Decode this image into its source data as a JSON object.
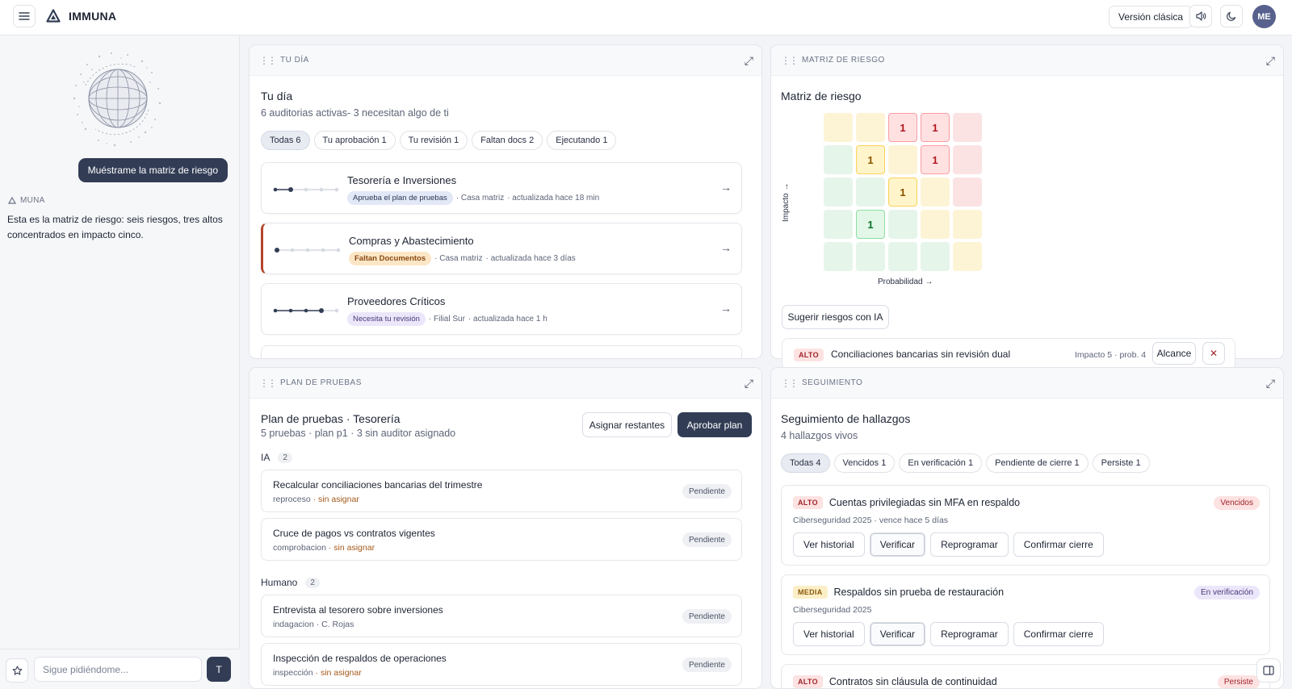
{
  "app": {
    "brand": "IMMUNA",
    "classic_label": "Versión clásica",
    "avatar_initials": "ME"
  },
  "sidebar": {
    "user_message": "Muéstrame la matriz de riesgo",
    "assistant_name": "MUNA",
    "assistant_message": "Esta es la matriz de riesgo: seis riesgos, tres altos concentrados en impacto cinco.",
    "input_placeholder": "Sigue pidiéndome...",
    "send_label": "T"
  },
  "tu_dia": {
    "header": "TU DÍA",
    "title": "Tu día",
    "subtitle": "6 auditorias activas- 3 necesitan algo de ti",
    "filters": [
      "Todas 6",
      "Tu aprobación 1",
      "Tu revisión 1",
      "Faltan docs 2",
      "Ejecutando 1"
    ],
    "audits": [
      {
        "name": "Tesorería e Inversiones",
        "tag": "Aprueba el plan de pruebas",
        "location": "· Casa matriz",
        "updated": "· actualizada hace 18 min",
        "progress_step": 2,
        "steps": 5
      },
      {
        "name": "Compras y Abastecimiento",
        "tag": "Faltan Documentos",
        "location": "· Casa matriz",
        "updated": "· actualizada hace 3 días",
        "progress_step": 1,
        "steps": 5
      },
      {
        "name": "Proveedores Críticos",
        "tag": "Necesita tu revisión",
        "location": "· Filial Sur",
        "updated": "· actualizada hace 1 h",
        "progress_step": 4,
        "steps": 5
      }
    ]
  },
  "matriz": {
    "header": "MATRIZ DE RIESGO",
    "title": "Matriz de riesgo",
    "y_axis": "Impacto →",
    "x_axis": "Probabilidad →",
    "counts": [
      {
        "impact": 5,
        "prob": 3,
        "value": "1"
      },
      {
        "impact": 5,
        "prob": 4,
        "value": "1"
      },
      {
        "impact": 4,
        "prob": 2,
        "value": "1"
      },
      {
        "impact": 4,
        "prob": 4,
        "value": "1"
      },
      {
        "impact": 3,
        "prob": 3,
        "value": "1"
      },
      {
        "impact": 2,
        "prob": 2,
        "value": "1"
      }
    ],
    "suggest_label": "Sugerir riesgos con IA",
    "risk": {
      "severity": "ALTO",
      "name": "Conciliaciones bancarias sin revisión dual",
      "detail": "Impacto 5 · prob. 4",
      "scope_label": "Alcance"
    },
    "colors": {
      "green": "#e6f5ea",
      "yellow": "#fdf4d6",
      "red": "#fbe3e4"
    }
  },
  "plan": {
    "header": "PLAN DE PRUEBAS",
    "title": "Plan de pruebas · Tesorería",
    "subtitle": "5 pruebas · plan p1 · 3 sin auditor asignado",
    "assign_label": "Asignar restantes",
    "approve_label": "Aprobar plan",
    "groups": [
      {
        "label": "IA",
        "count": "2"
      },
      {
        "label": "Humano",
        "count": "2"
      }
    ],
    "tests": [
      {
        "name": "Recalcular conciliaciones bancarias del trimestre",
        "kind": "reproceso",
        "owner": "· sin asignar",
        "status": "Pendiente"
      },
      {
        "name": "Cruce de pagos vs contratos vigentes",
        "kind": "comprobacion",
        "owner": "· sin asignar",
        "status": "Pendiente"
      },
      {
        "name": "Entrevista al tesorero sobre inversiones",
        "kind": "indagacion",
        "owner": "· C. Rojas",
        "status": "Pendiente"
      },
      {
        "name": "Inspección de respaldos de operaciones",
        "kind": "inspección",
        "owner": "· sin asignar",
        "status": "Pendiente"
      }
    ]
  },
  "seguimiento": {
    "header": "SEGUIMIENTO",
    "title": "Seguimiento de hallazgos",
    "subtitle": "4 hallazgos vivos",
    "filters": [
      "Todas 4",
      "Vencidos 1",
      "En verificación 1",
      "Pendiente de cierre 1",
      "Persiste 1"
    ],
    "actions": [
      "Ver historial",
      "Verificar",
      "Reprogramar",
      "Confirmar cierre"
    ],
    "findings": [
      {
        "severity": "ALTO",
        "title": "Cuentas privilegiadas sin MFA en respaldo",
        "meta": "Ciberseguridad 2025 · vence hace 5 días",
        "status": "Vencidos"
      },
      {
        "severity": "MEDIA",
        "title": "Respaldos sin prueba de restauración",
        "meta": "Ciberseguridad 2025",
        "status": "En verificación"
      },
      {
        "severity": "ALTO",
        "title": "Contratos sin cláusula de continuidad",
        "meta": "",
        "status": "Persiste"
      }
    ]
  }
}
